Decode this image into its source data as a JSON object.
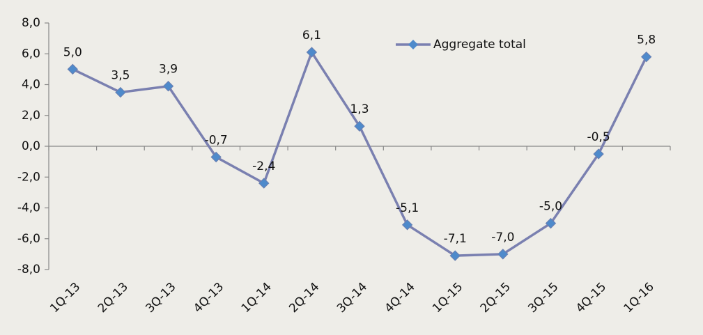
{
  "chart_data": {
    "type": "line",
    "categories": [
      "1Q-13",
      "2Q-13",
      "3Q-13",
      "4Q-13",
      "1Q-14",
      "2Q-14",
      "3Q-14",
      "4Q-14",
      "1Q-15",
      "2Q-15",
      "3Q-15",
      "4Q-15",
      "1Q-16"
    ],
    "series": [
      {
        "name": "Aggregate total",
        "color": "#7a80b0",
        "marker_color": "#4e8acb",
        "values": [
          5.0,
          3.5,
          3.9,
          -0.7,
          -2.4,
          6.1,
          1.3,
          -5.1,
          -7.1,
          -7.0,
          -5.0,
          -0.5,
          5.8
        ],
        "value_labels": [
          "5,0",
          "3,5",
          "3,9",
          "-0,7",
          "-2,4",
          "6,1",
          "1,3",
          "-5,1",
          "-7,1",
          "-7,0",
          "-5,0",
          "-0,5",
          "5,8"
        ]
      }
    ],
    "ylim": [
      -8,
      8
    ],
    "yticks": [
      {
        "value": -8,
        "label": "-8,0"
      },
      {
        "value": -6,
        "label": "-6,0"
      },
      {
        "value": -4,
        "label": "-4,0"
      },
      {
        "value": -2,
        "label": "-2,0"
      },
      {
        "value": 0,
        "label": "0,0"
      },
      {
        "value": 2,
        "label": "2,0"
      },
      {
        "value": 4,
        "label": "4,0"
      },
      {
        "value": 6,
        "label": "6,0"
      },
      {
        "value": 8,
        "label": "8,0"
      }
    ],
    "grid": false,
    "legend": "top-right"
  }
}
